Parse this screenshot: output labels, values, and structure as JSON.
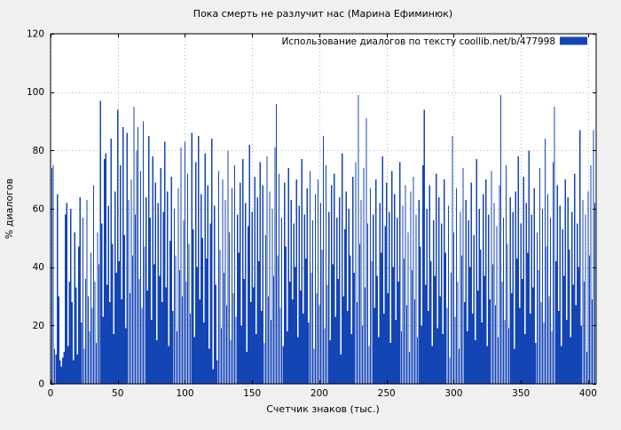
{
  "chart_data": {
    "type": "bar",
    "title": "Пока смерть не разлучит нас (Марина Ефиминюк)",
    "xlabel": "Счетчик знаков (тыс.)",
    "ylabel": "% диалогов",
    "legend": "Использование диалогов по тексту  coollib.net/b/477998",
    "legend_position": "top-right-inside",
    "bar_color": "#1445b5",
    "background": "#f0f0f0",
    "plot_background": "#ffffff",
    "grid": true,
    "xlim": [
      0,
      406
    ],
    "ylim": [
      0,
      120
    ],
    "x_ticks": [
      0,
      50,
      100,
      150,
      200,
      250,
      300,
      350,
      400
    ],
    "y_ticks": [
      0,
      20,
      40,
      60,
      80,
      100,
      120
    ],
    "x_start": 0,
    "x_step": 1,
    "values": [
      5,
      74,
      75,
      12,
      10,
      65,
      30,
      8,
      6,
      9,
      11,
      58,
      62,
      13,
      35,
      60,
      28,
      8,
      52,
      33,
      10,
      47,
      64,
      21,
      57,
      12,
      36,
      63,
      30,
      18,
      45,
      26,
      68,
      35,
      14,
      52,
      41,
      97,
      55,
      23,
      77,
      79,
      34,
      61,
      28,
      84,
      48,
      17,
      66,
      38,
      94,
      42,
      75,
      29,
      88,
      51,
      19,
      86,
      63,
      31,
      70,
      44,
      95,
      58,
      80,
      88,
      36,
      73,
      26,
      90,
      47,
      64,
      32,
      85,
      57,
      22,
      78,
      41,
      69,
      15,
      62,
      37,
      74,
      28,
      59,
      83,
      33,
      66,
      13,
      49,
      71,
      25,
      60,
      44,
      18,
      67,
      39,
      81,
      30,
      56,
      83,
      35,
      72,
      48,
      24,
      86,
      53,
      16,
      76,
      40,
      85,
      29,
      65,
      50,
      21,
      79,
      43,
      68,
      12,
      55,
      84,
      5,
      61,
      34,
      8,
      73,
      46,
      19,
      70,
      38,
      63,
      27,
      80,
      52,
      15,
      67,
      31,
      75,
      23,
      58,
      45,
      69,
      20,
      77,
      36,
      62,
      11,
      54,
      82,
      28,
      59,
      33,
      71,
      17,
      64,
      42,
      76,
      25,
      68,
      14,
      51,
      78,
      30,
      66,
      22,
      60,
      37,
      81,
      96,
      44,
      72,
      26,
      57,
      13,
      69,
      47,
      18,
      74,
      35,
      63,
      29,
      55,
      40,
      70,
      16,
      61,
      32,
      77,
      24,
      58,
      43,
      67,
      21,
      73,
      38,
      56,
      12,
      65,
      31,
      70,
      27,
      62,
      46,
      85,
      19,
      75,
      34,
      59,
      15,
      68,
      41,
      72,
      23,
      57,
      36,
      64,
      10,
      79,
      30,
      53,
      66,
      25,
      60,
      44,
      17,
      71,
      38,
      76,
      28,
      99,
      48,
      63,
      20,
      74,
      33,
      91,
      55,
      13,
      67,
      42,
      58,
      26,
      70,
      37,
      16,
      62,
      45,
      78,
      24,
      54,
      69,
      31,
      59,
      14,
      73,
      40,
      65,
      22,
      57,
      35,
      76,
      18,
      61,
      43,
      68,
      27,
      52,
      11,
      66,
      39,
      71,
      29,
      58,
      16,
      63,
      47,
      20,
      75,
      94,
      34,
      60,
      25,
      68,
      42,
      13,
      56,
      37,
      72,
      19,
      64,
      30,
      55,
      17,
      70,
      45,
      26,
      61,
      9,
      38,
      85,
      52,
      23,
      67,
      35,
      12,
      59,
      44,
      74,
      28,
      63,
      18,
      56,
      40,
      69,
      24,
      51,
      15,
      77,
      32,
      60,
      46,
      21,
      65,
      37,
      70,
      13,
      58,
      29,
      73,
      41,
      62,
      27,
      54,
      16,
      68,
      99,
      35,
      57,
      22,
      75,
      48,
      19,
      64,
      31,
      59,
      12,
      66,
      43,
      78,
      26,
      55,
      36,
      71,
      17,
      62,
      45,
      80,
      24,
      58,
      33,
      67,
      14,
      52,
      39,
      74,
      28,
      60,
      21,
      84,
      47,
      65,
      30,
      57,
      18,
      76,
      95,
      42,
      68,
      25,
      61,
      13,
      53,
      37,
      70,
      22,
      64,
      46,
      16,
      59,
      34,
      72,
      27,
      55,
      40,
      87,
      20,
      63,
      35,
      58,
      11,
      66,
      44,
      75,
      29,
      87,
      62
    ]
  }
}
